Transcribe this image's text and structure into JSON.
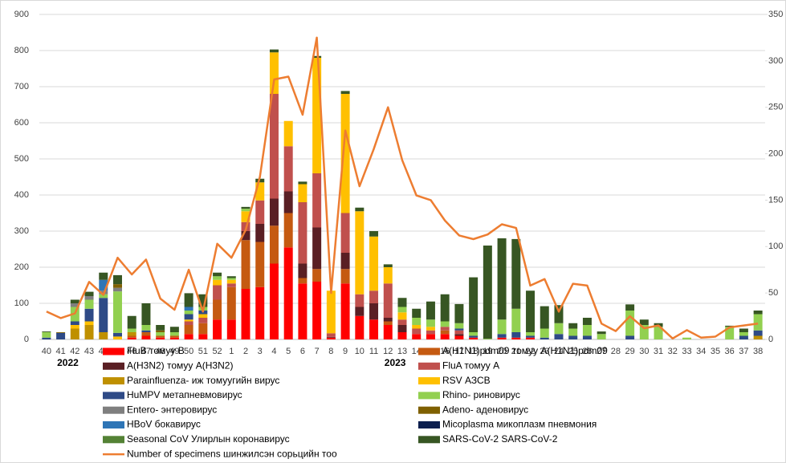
{
  "chart_data": {
    "type": "bar",
    "stacked": true,
    "categories": [
      "40",
      "41",
      "42",
      "43",
      "44",
      "45",
      "46",
      "47",
      "48",
      "49",
      "50",
      "51",
      "52",
      "1",
      "2",
      "3",
      "4",
      "5",
      "6",
      "7",
      "8",
      "9",
      "10",
      "11",
      "12",
      "13",
      "14",
      "15",
      "16",
      "17",
      "18",
      "19",
      "20",
      "21",
      "22",
      "23",
      "24",
      "25",
      "26",
      "27",
      "28",
      "29",
      "30",
      "31",
      "32",
      "33",
      "34",
      "35",
      "36",
      "37",
      "38"
    ],
    "year_labels": [
      {
        "label": "2022",
        "category": "41"
      },
      {
        "label": "2023",
        "category": "12"
      }
    ],
    "ylim": [
      0,
      900
    ],
    "yticks": [
      0,
      100,
      200,
      300,
      400,
      500,
      600,
      700,
      800,
      900
    ],
    "y2lim": [
      0,
      350
    ],
    "y2ticks": [
      0,
      50,
      100,
      150,
      200,
      250,
      300,
      350
    ],
    "grid": true,
    "series": [
      {
        "name": "FluB томуу B",
        "color": "#ff0000",
        "values": [
          0,
          0,
          0,
          0,
          0,
          0,
          5,
          10,
          5,
          5,
          15,
          15,
          55,
          55,
          140,
          145,
          210,
          255,
          155,
          160,
          5,
          155,
          65,
          55,
          40,
          20,
          15,
          15,
          15,
          10,
          5,
          0,
          5,
          5,
          5,
          0,
          0,
          0,
          0,
          0,
          0,
          0,
          0,
          0,
          0,
          0,
          0,
          0,
          0,
          0,
          0
        ]
      },
      {
        "name": "A(H1N1)pdm09 томуу A(H1N1)pdm09",
        "color": "#c55a11",
        "values": [
          0,
          0,
          0,
          0,
          0,
          0,
          5,
          10,
          5,
          5,
          25,
          30,
          55,
          90,
          135,
          125,
          105,
          95,
          15,
          35,
          0,
          40,
          0,
          0,
          10,
          0,
          0,
          0,
          10,
          0,
          0,
          0,
          0,
          0,
          0,
          0,
          0,
          0,
          0,
          0,
          0,
          0,
          0,
          0,
          0,
          0,
          0,
          0,
          0,
          0,
          0
        ]
      },
      {
        "name": "A(H3N2) томуу A(H3N2)",
        "color": "#5a1f24",
        "values": [
          0,
          0,
          0,
          0,
          0,
          0,
          0,
          0,
          0,
          0,
          0,
          0,
          0,
          0,
          25,
          50,
          75,
          60,
          40,
          115,
          2,
          45,
          25,
          45,
          10,
          20,
          0,
          0,
          0,
          5,
          0,
          0,
          0,
          0,
          0,
          0,
          0,
          0,
          0,
          0,
          0,
          0,
          0,
          0,
          0,
          0,
          0,
          0,
          0,
          0,
          0
        ]
      },
      {
        "name": "FluA томуу A",
        "color": "#c0504d",
        "values": [
          0,
          0,
          0,
          0,
          0,
          0,
          0,
          0,
          0,
          0,
          10,
          15,
          40,
          10,
          25,
          65,
          290,
          125,
          170,
          150,
          10,
          110,
          35,
          35,
          95,
          15,
          15,
          10,
          10,
          10,
          0,
          0,
          0,
          0,
          0,
          0,
          0,
          0,
          0,
          0,
          0,
          0,
          0,
          0,
          0,
          0,
          0,
          0,
          0,
          0,
          0
        ]
      },
      {
        "name": "Parainfluenza- иж томуугийн вирус",
        "color": "#bf9000",
        "values": [
          0,
          0,
          30,
          40,
          20,
          0,
          10,
          0,
          0,
          0,
          0,
          0,
          0,
          0,
          0,
          0,
          0,
          0,
          0,
          0,
          0,
          0,
          0,
          0,
          0,
          0,
          0,
          0,
          0,
          0,
          0,
          0,
          0,
          0,
          0,
          0,
          0,
          0,
          0,
          0,
          0,
          0,
          0,
          0,
          0,
          0,
          0,
          0,
          0,
          0,
          10
        ]
      },
      {
        "name": "RSV АЗСВ",
        "color": "#ffc000",
        "values": [
          0,
          0,
          10,
          10,
          0,
          8,
          0,
          0,
          0,
          0,
          5,
          10,
          15,
          10,
          30,
          50,
          115,
          70,
          50,
          320,
          118,
          330,
          230,
          150,
          45,
          20,
          10,
          10,
          0,
          0,
          0,
          0,
          0,
          0,
          0,
          0,
          0,
          0,
          0,
          0,
          0,
          0,
          0,
          0,
          0,
          0,
          0,
          0,
          0,
          0,
          0
        ]
      },
      {
        "name": "HuMPV метапневмовирус",
        "color": "#2e4a86",
        "values": [
          5,
          18,
          10,
          35,
          95,
          10,
          0,
          5,
          0,
          0,
          15,
          10,
          0,
          0,
          0,
          0,
          0,
          0,
          0,
          0,
          0,
          0,
          0,
          0,
          0,
          0,
          0,
          0,
          0,
          5,
          5,
          0,
          10,
          15,
          5,
          5,
          15,
          10,
          10,
          0,
          0,
          10,
          0,
          0,
          0,
          0,
          0,
          0,
          0,
          10,
          15
        ]
      },
      {
        "name": "Rhino- риновирус",
        "color": "#92d050",
        "values": [
          15,
          0,
          40,
          25,
          10,
          115,
          10,
          15,
          10,
          10,
          10,
          10,
          10,
          5,
          7,
          0,
          0,
          0,
          0,
          0,
          0,
          0,
          0,
          0,
          0,
          15,
          20,
          20,
          15,
          15,
          10,
          2,
          40,
          65,
          10,
          25,
          30,
          20,
          30,
          15,
          0,
          70,
          40,
          35,
          0,
          5,
          0,
          0,
          35,
          10,
          45
        ]
      },
      {
        "name": "Entero- энтеровирус",
        "color": "#7f7f7f",
        "values": [
          0,
          0,
          10,
          10,
          10,
          10,
          0,
          0,
          0,
          0,
          0,
          0,
          0,
          0,
          0,
          0,
          0,
          0,
          0,
          0,
          0,
          0,
          0,
          0,
          0,
          0,
          0,
          0,
          0,
          0,
          0,
          0,
          0,
          0,
          0,
          0,
          0,
          0,
          0,
          0,
          0,
          0,
          0,
          0,
          0,
          0,
          0,
          0,
          0,
          0,
          0
        ]
      },
      {
        "name": "Adeno- аденовирус",
        "color": "#7f6000",
        "values": [
          0,
          2,
          0,
          0,
          0,
          10,
          0,
          0,
          5,
          0,
          0,
          0,
          0,
          0,
          0,
          0,
          0,
          0,
          0,
          0,
          0,
          0,
          0,
          0,
          0,
          0,
          0,
          0,
          0,
          0,
          0,
          0,
          0,
          0,
          0,
          0,
          0,
          0,
          0,
          0,
          0,
          0,
          0,
          0,
          0,
          0,
          0,
          0,
          0,
          0,
          0
        ]
      },
      {
        "name": "HBoV бокавирус",
        "color": "#2e75b6",
        "values": [
          0,
          0,
          0,
          0,
          30,
          0,
          0,
          0,
          0,
          0,
          10,
          0,
          0,
          0,
          0,
          0,
          0,
          0,
          0,
          0,
          0,
          0,
          0,
          0,
          0,
          0,
          0,
          0,
          0,
          0,
          0,
          0,
          0,
          0,
          0,
          0,
          0,
          0,
          0,
          0,
          0,
          0,
          0,
          0,
          0,
          0,
          0,
          0,
          0,
          0,
          0
        ]
      },
      {
        "name": "Micoplasma микоплазм пневмония",
        "color": "#0c1f4e",
        "values": [
          0,
          0,
          0,
          0,
          0,
          0,
          0,
          0,
          0,
          0,
          0,
          0,
          0,
          0,
          0,
          0,
          0,
          0,
          0,
          0,
          0,
          0,
          0,
          0,
          0,
          0,
          0,
          0,
          0,
          0,
          0,
          0,
          0,
          0,
          0,
          0,
          0,
          0,
          0,
          0,
          0,
          0,
          0,
          0,
          0,
          0,
          0,
          0,
          0,
          0,
          0
        ]
      },
      {
        "name": "Seasonal CoV Улирлын коронавирус",
        "color": "#548235",
        "values": [
          0,
          0,
          0,
          0,
          0,
          0,
          0,
          0,
          0,
          0,
          0,
          0,
          0,
          0,
          0,
          0,
          0,
          0,
          0,
          0,
          0,
          0,
          0,
          0,
          0,
          0,
          0,
          0,
          0,
          0,
          0,
          0,
          0,
          0,
          0,
          0,
          0,
          0,
          0,
          0,
          0,
          0,
          0,
          0,
          0,
          0,
          0,
          0,
          0,
          0,
          0
        ]
      },
      {
        "name": "SARS-CoV-2 SARS-CoV-2",
        "color": "#375623",
        "values": [
          2,
          0,
          10,
          12,
          20,
          25,
          35,
          60,
          15,
          15,
          38,
          35,
          10,
          5,
          5,
          10,
          8,
          0,
          7,
          5,
          0,
          8,
          10,
          15,
          8,
          25,
          25,
          50,
          75,
          53,
          152,
          258,
          225,
          193,
          115,
          62,
          50,
          15,
          20,
          7,
          0,
          17,
          15,
          10,
          0,
          0,
          0,
          0,
          3,
          10,
          10
        ]
      },
      {
        "name": "Number of specimens шинжилсэн сорьцийн тоо",
        "type": "line",
        "axis": "y2",
        "color": "#ed7d31",
        "values": [
          30,
          23,
          28,
          62,
          48,
          88,
          70,
          86,
          44,
          32,
          75,
          30,
          103,
          88,
          118,
          175,
          280,
          283,
          242,
          325,
          50,
          225,
          165,
          205,
          250,
          193,
          155,
          150,
          128,
          112,
          108,
          113,
          124,
          120,
          58,
          65,
          30,
          60,
          58,
          17,
          9,
          25,
          12,
          15,
          1,
          10,
          2,
          3,
          13,
          15,
          17
        ]
      }
    ]
  }
}
